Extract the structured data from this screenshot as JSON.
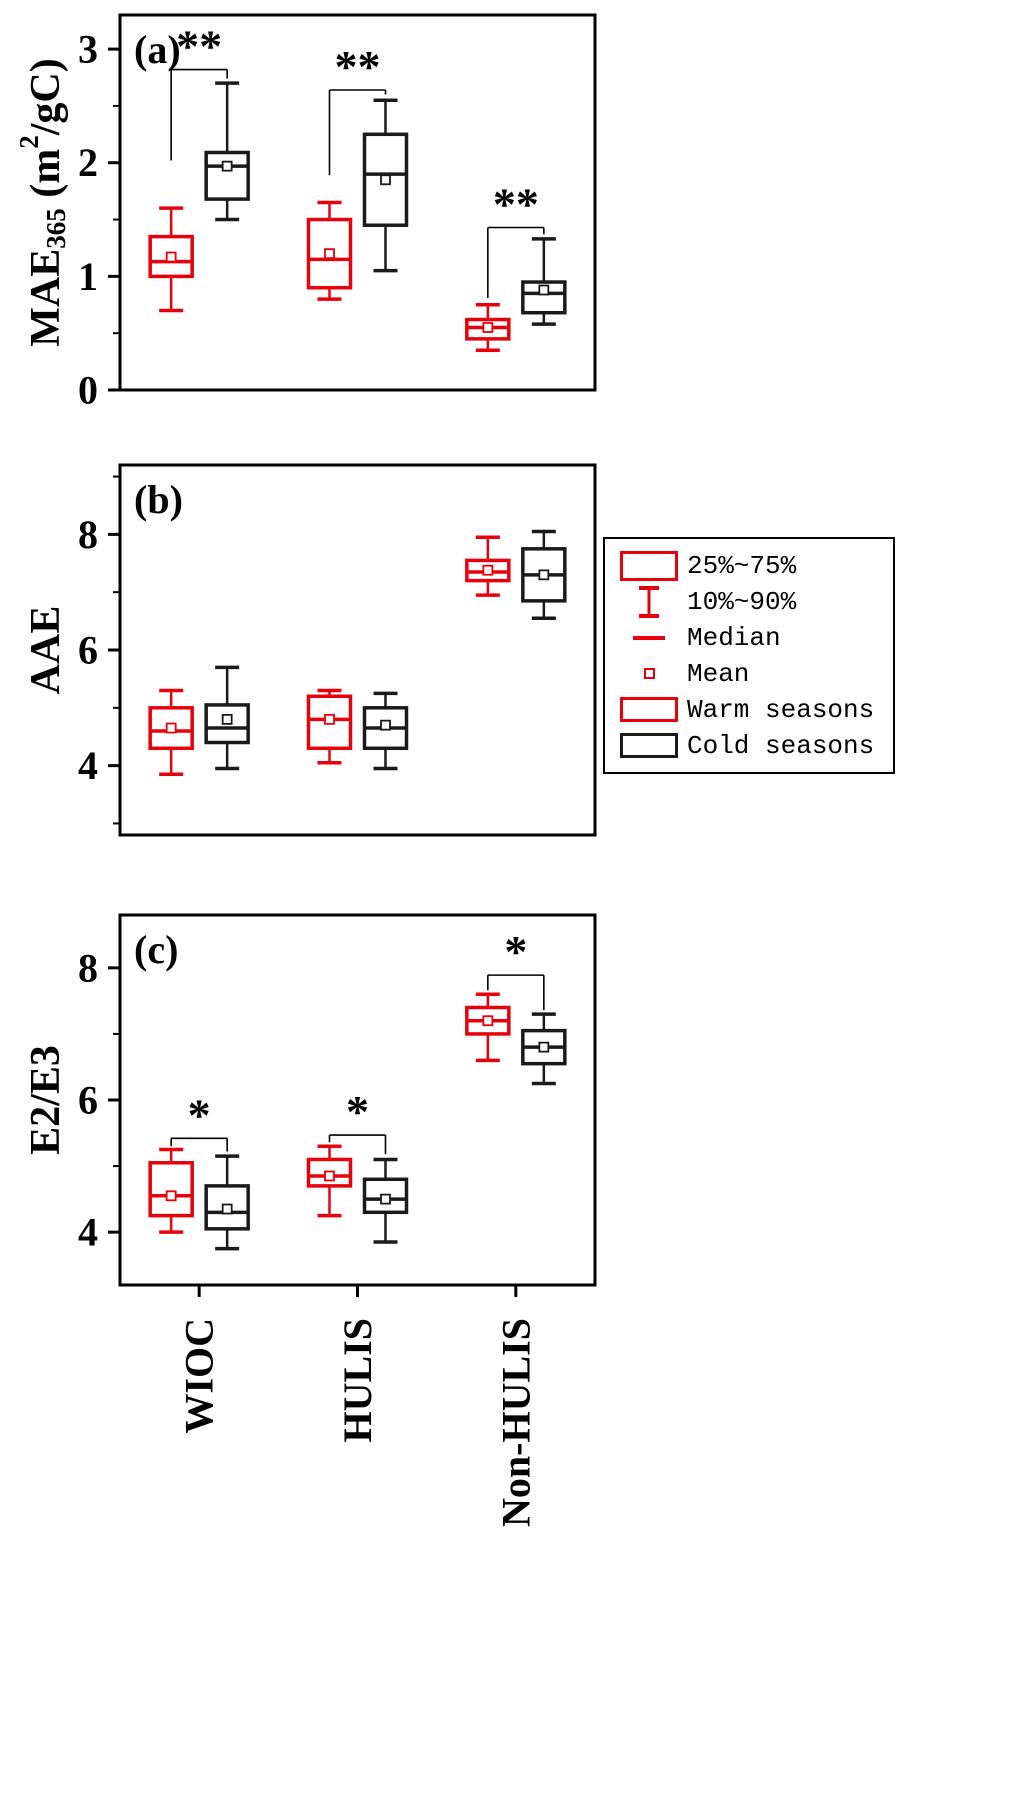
{
  "colors": {
    "warm": "#e8000b",
    "cold": "#1a1a1a",
    "axis": "#000000",
    "background": "#ffffff"
  },
  "legend": {
    "items": [
      {
        "symbol": "iqr-box",
        "label": "25%~75%"
      },
      {
        "symbol": "whisker-error-bar",
        "label": "10%~90%"
      },
      {
        "symbol": "median-line",
        "label": "Median"
      },
      {
        "symbol": "mean-square",
        "label": "Mean"
      },
      {
        "symbol": "warm-box",
        "label": "Warm seasons"
      },
      {
        "symbol": "cold-box",
        "label": "Cold seasons"
      }
    ]
  },
  "chart_data": {
    "type": "boxplot",
    "categories": [
      "WIOC",
      "HULIS",
      "Non-HULIS"
    ],
    "series": [
      "Warm seasons",
      "Cold seasons"
    ],
    "legend_position": "right-middle",
    "panels": [
      {
        "label": "(a)",
        "ylabel": "MAE365 (m2/gC)",
        "ylabel_parts": [
          {
            "text": "MAE"
          },
          {
            "text": "365",
            "script": "sub"
          },
          {
            "text": " (m"
          },
          {
            "text": "2",
            "script": "sup"
          },
          {
            "text": "/gC)"
          }
        ],
        "ylim": [
          0,
          3.3
        ],
        "yticks": [
          0,
          1,
          2,
          3
        ],
        "yminor": [
          0.5,
          1.5,
          2.5
        ],
        "boxes": [
          {
            "category": "WIOC",
            "season": "warm",
            "low": 0.7,
            "q1": 1.0,
            "median": 1.13,
            "mean": 1.17,
            "q3": 1.35,
            "high": 1.6
          },
          {
            "category": "WIOC",
            "season": "cold",
            "low": 1.5,
            "q1": 1.68,
            "median": 1.97,
            "mean": 1.97,
            "q3": 2.09,
            "high": 2.7
          },
          {
            "category": "HULIS",
            "season": "warm",
            "low": 0.8,
            "q1": 0.9,
            "median": 1.15,
            "mean": 1.2,
            "q3": 1.5,
            "high": 1.65
          },
          {
            "category": "HULIS",
            "season": "cold",
            "low": 1.05,
            "q1": 1.45,
            "median": 1.9,
            "mean": 1.85,
            "q3": 2.25,
            "high": 2.55
          },
          {
            "category": "Non-HULIS",
            "season": "warm",
            "low": 0.35,
            "q1": 0.45,
            "median": 0.55,
            "mean": 0.55,
            "q3": 0.62,
            "high": 0.75
          },
          {
            "category": "Non-HULIS",
            "season": "cold",
            "low": 0.58,
            "q1": 0.68,
            "median": 0.85,
            "mean": 0.88,
            "q3": 0.95,
            "high": 1.33
          }
        ],
        "significance": [
          {
            "category": "WIOC",
            "label": "**",
            "y": 2.82,
            "left_end": 2.02,
            "right_end": 2.74
          },
          {
            "category": "HULIS",
            "label": "**",
            "y": 2.64,
            "left_end": 1.89,
            "right_end": 2.6
          },
          {
            "category": "Non-HULIS",
            "label": "**",
            "y": 1.43,
            "left_end": 0.81,
            "right_end": 1.37
          }
        ]
      },
      {
        "label": "(b)",
        "ylabel": "AAE",
        "ylabel_parts": [
          {
            "text": "AAE"
          }
        ],
        "ylim": [
          2.8,
          9.2
        ],
        "yticks": [
          4,
          6,
          8
        ],
        "yminor": [
          3,
          5,
          7,
          9
        ],
        "boxes": [
          {
            "category": "WIOC",
            "season": "warm",
            "low": 3.85,
            "q1": 4.3,
            "median": 4.6,
            "mean": 4.65,
            "q3": 5.0,
            "high": 5.3
          },
          {
            "category": "WIOC",
            "season": "cold",
            "low": 3.95,
            "q1": 4.4,
            "median": 4.65,
            "mean": 4.8,
            "q3": 5.05,
            "high": 5.7
          },
          {
            "category": "HULIS",
            "season": "warm",
            "low": 4.05,
            "q1": 4.3,
            "median": 4.8,
            "mean": 4.8,
            "q3": 5.2,
            "high": 5.3
          },
          {
            "category": "HULIS",
            "season": "cold",
            "low": 3.95,
            "q1": 4.3,
            "median": 4.65,
            "mean": 4.7,
            "q3": 5.0,
            "high": 5.25
          },
          {
            "category": "Non-HULIS",
            "season": "warm",
            "low": 6.95,
            "q1": 7.2,
            "median": 7.35,
            "mean": 7.38,
            "q3": 7.55,
            "high": 7.95
          },
          {
            "category": "Non-HULIS",
            "season": "cold",
            "low": 6.55,
            "q1": 6.85,
            "median": 7.3,
            "mean": 7.3,
            "q3": 7.75,
            "high": 8.05
          }
        ],
        "significance": []
      },
      {
        "label": "(c)",
        "ylabel": "E2/E3",
        "ylabel_parts": [
          {
            "text": "E2/E3"
          }
        ],
        "ylim": [
          3.2,
          8.8
        ],
        "yticks": [
          4,
          6,
          8
        ],
        "yminor": [
          5,
          7
        ],
        "boxes": [
          {
            "category": "WIOC",
            "season": "warm",
            "low": 4.0,
            "q1": 4.25,
            "median": 4.55,
            "mean": 4.55,
            "q3": 5.05,
            "high": 5.25
          },
          {
            "category": "WIOC",
            "season": "cold",
            "low": 3.75,
            "q1": 4.05,
            "median": 4.3,
            "mean": 4.35,
            "q3": 4.7,
            "high": 5.15
          },
          {
            "category": "HULIS",
            "season": "warm",
            "low": 4.25,
            "q1": 4.7,
            "median": 4.85,
            "mean": 4.85,
            "q3": 5.1,
            "high": 5.3
          },
          {
            "category": "HULIS",
            "season": "cold",
            "low": 3.85,
            "q1": 4.3,
            "median": 4.5,
            "mean": 4.5,
            "q3": 4.8,
            "high": 5.1
          },
          {
            "category": "Non-HULIS",
            "season": "warm",
            "low": 6.6,
            "q1": 7.0,
            "median": 7.2,
            "mean": 7.2,
            "q3": 7.4,
            "high": 7.6
          },
          {
            "category": "Non-HULIS",
            "season": "cold",
            "low": 6.25,
            "q1": 6.55,
            "median": 6.8,
            "mean": 6.8,
            "q3": 7.05,
            "high": 7.3
          }
        ],
        "significance": [
          {
            "category": "WIOC",
            "label": "*",
            "y": 5.42,
            "left_end": 5.3,
            "right_end": 5.22
          },
          {
            "category": "HULIS",
            "label": "*",
            "y": 5.47,
            "left_end": 5.36,
            "right_end": 5.18
          },
          {
            "category": "Non-HULIS",
            "label": "*",
            "y": 7.89,
            "left_end": 7.66,
            "right_end": 7.36
          }
        ]
      }
    ]
  }
}
